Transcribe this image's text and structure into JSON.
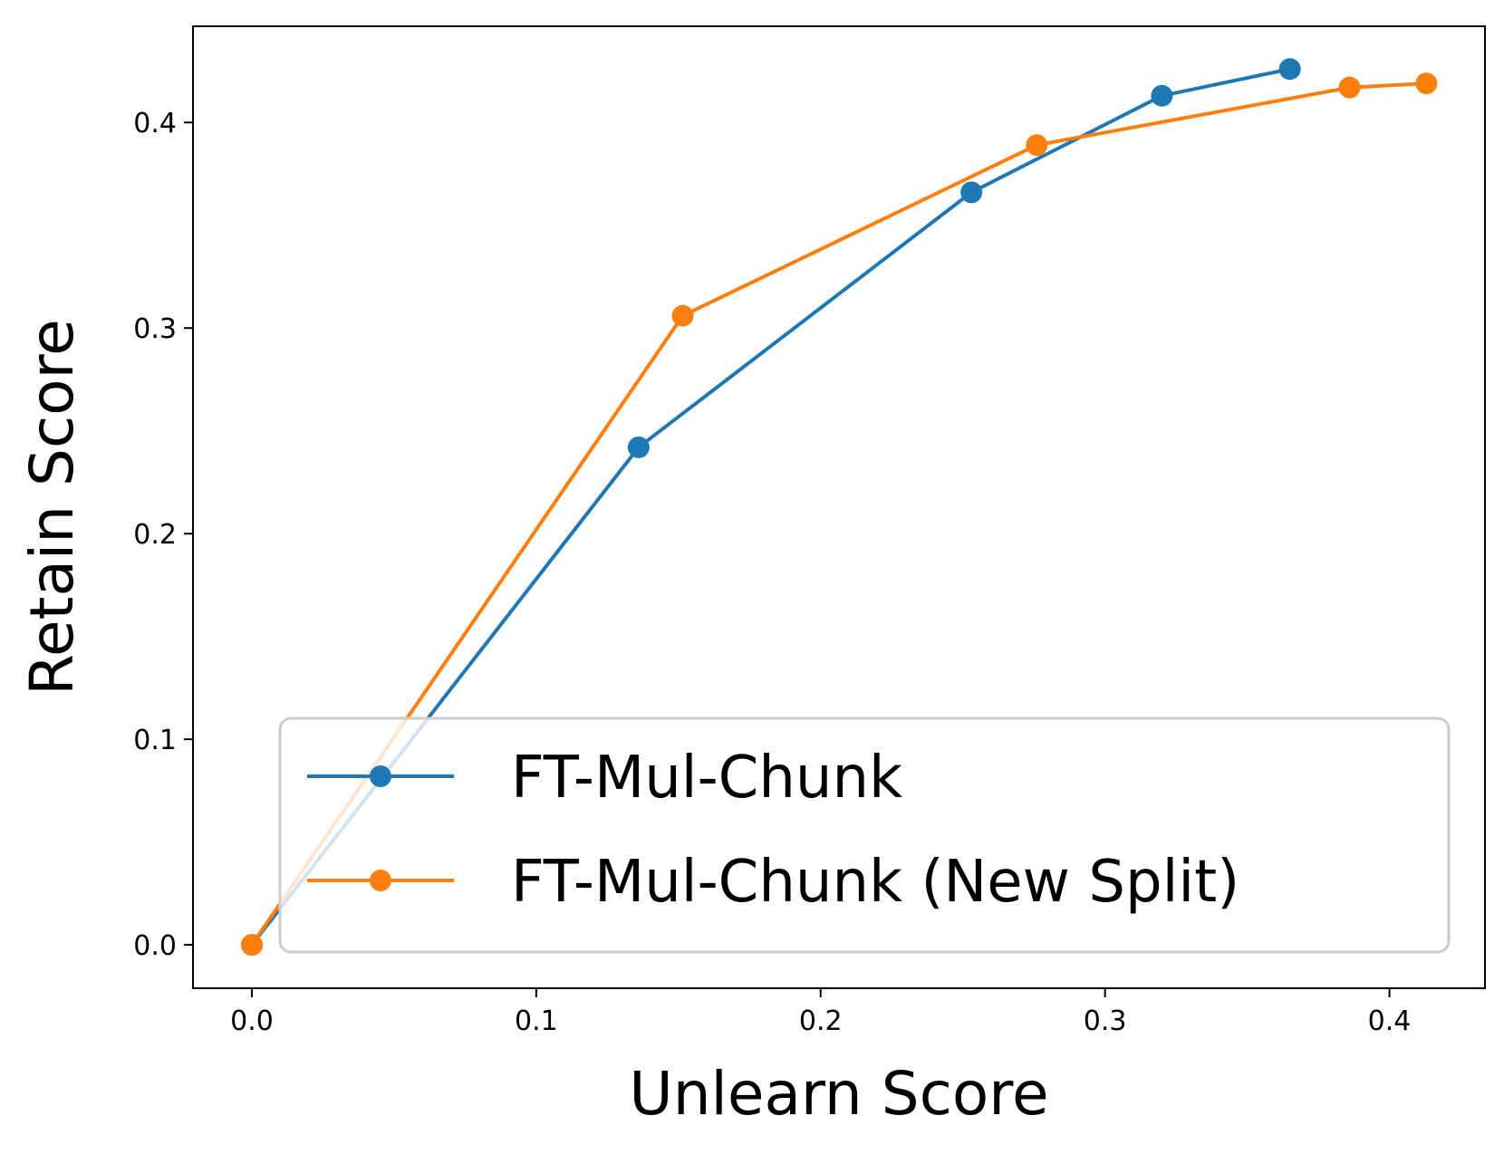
{
  "chart_data": {
    "type": "line",
    "x_label": "Unlearn Score",
    "y_label": "Retain Score",
    "xlim": [
      -0.0207,
      0.4336
    ],
    "ylim": [
      -0.0211,
      0.4468
    ],
    "xticks": [
      {
        "value": 0,
        "label": "0.0"
      },
      0.1,
      0.2,
      0.3,
      0.4
    ],
    "yticks": [
      {
        "value": 0,
        "label": "0.0"
      },
      0.1,
      0.2,
      0.3,
      0.4
    ],
    "legend": "lower right",
    "series": [
      {
        "name": "FT-Mul-Chunk",
        "color": "#1f77b4",
        "x": [
          0,
          0.136,
          0.253,
          0.32,
          0.365
        ],
        "values": [
          0,
          0.242,
          0.366,
          0.413,
          0.426
        ]
      },
      {
        "name": "FT-Mul-Chunk (New Split)",
        "color": "#ff7f0e",
        "x": [
          0,
          0.1515,
          0.276,
          0.386,
          0.413
        ],
        "values": [
          0,
          0.306,
          0.389,
          0.417,
          0.419
        ]
      }
    ]
  }
}
